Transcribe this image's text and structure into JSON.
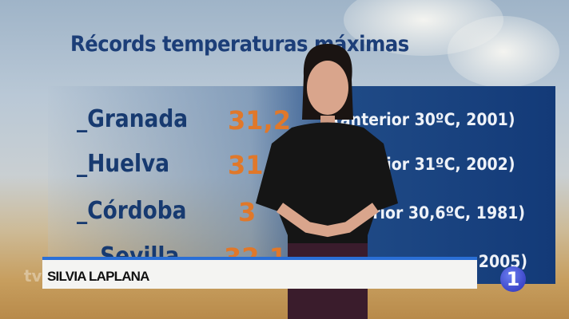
{
  "title": "Récords temperaturas máximas",
  "records": [
    {
      "city": "_Granada",
      "value": "31,2",
      "previous": "(anterior 30ºC, 2001)"
    },
    {
      "city": "_Huelva",
      "value": "31",
      "previous": "(anterior 31ºC, 2002)"
    },
    {
      "city": "_Córdoba",
      "value": "3",
      "previous": "(anterior 30,6ºC, 1981)"
    },
    {
      "city": "_Sevilla",
      "value": "32,1",
      "previous": "2005)"
    }
  ],
  "lower_third": {
    "name": "SILVIA LAPLANA"
  },
  "channel_logo": "1",
  "watermark": "tve",
  "colors": {
    "title": "#1c3e78",
    "value": "#e0782a",
    "lower_third_accent": "#2a6fd6"
  }
}
